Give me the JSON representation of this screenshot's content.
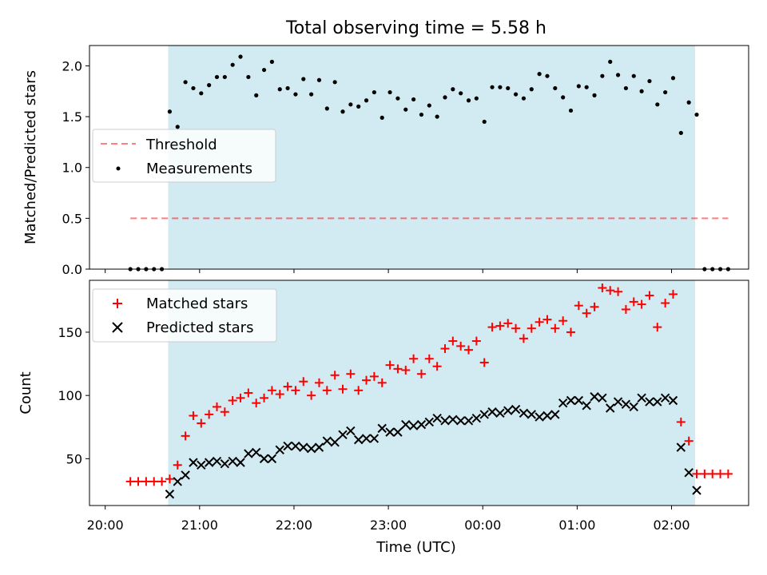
{
  "chart_data": [
    {
      "type": "scatter",
      "title": "Total observing time = 5.58 h",
      "xlabel": "",
      "ylabel": "Matched/Predicted stars",
      "ylim": [
        0,
        2.2
      ],
      "yticks": [
        "0.0",
        "0.5",
        "1.0",
        "1.5",
        "2.0"
      ],
      "legend": {
        "placement": "center-left",
        "entries": [
          "Threshold",
          "Measurements"
        ]
      },
      "shaded_interval": {
        "x": [
          "20:40",
          "02:15"
        ],
        "color": "#add8e6"
      },
      "threshold": {
        "name": "Threshold",
        "y": 0.5,
        "x": [
          "20:16",
          "02:36"
        ],
        "color": "#ff0000"
      },
      "series": [
        {
          "name": "Measurements",
          "color": "#000000",
          "x": [
            "20:16",
            "20:21",
            "20:26",
            "20:31",
            "20:36",
            "20:41",
            "20:46",
            "20:51",
            "20:56",
            "21:01",
            "21:06",
            "21:11",
            "21:16",
            "21:21",
            "21:26",
            "21:31",
            "21:36",
            "21:41",
            "21:46",
            "21:51",
            "21:56",
            "22:01",
            "22:06",
            "22:11",
            "22:16",
            "22:21",
            "22:26",
            "22:31",
            "22:36",
            "22:41",
            "22:46",
            "22:51",
            "22:56",
            "23:01",
            "23:06",
            "23:11",
            "23:16",
            "23:21",
            "23:26",
            "23:31",
            "23:36",
            "23:41",
            "23:46",
            "23:51",
            "23:56",
            "00:01",
            "00:06",
            "00:11",
            "00:16",
            "00:21",
            "00:26",
            "00:31",
            "00:36",
            "00:41",
            "00:46",
            "00:51",
            "00:56",
            "01:01",
            "01:06",
            "01:11",
            "01:16",
            "01:21",
            "01:26",
            "01:31",
            "01:36",
            "01:41",
            "01:46",
            "01:51",
            "01:56",
            "02:01",
            "02:06",
            "02:11",
            "02:16",
            "02:21",
            "02:26",
            "02:31",
            "02:36"
          ],
          "y": [
            0,
            0,
            0,
            0,
            0,
            1.55,
            1.4,
            1.84,
            1.78,
            1.73,
            1.81,
            1.89,
            1.89,
            2.01,
            2.09,
            1.89,
            1.71,
            1.96,
            2.04,
            1.77,
            1.78,
            1.72,
            1.87,
            1.72,
            1.86,
            1.58,
            1.84,
            1.55,
            1.62,
            1.6,
            1.66,
            1.74,
            1.49,
            1.74,
            1.68,
            1.57,
            1.67,
            1.52,
            1.61,
            1.5,
            1.69,
            1.77,
            1.73,
            1.66,
            1.68,
            1.45,
            1.79,
            1.79,
            1.78,
            1.72,
            1.68,
            1.77,
            1.92,
            1.9,
            1.78,
            1.69,
            1.56,
            1.8,
            1.79,
            1.71,
            1.9,
            2.04,
            1.91,
            1.78,
            1.9,
            1.75,
            1.85,
            1.62,
            1.74,
            1.88,
            1.34,
            1.64,
            1.52,
            0,
            0,
            0,
            0
          ]
        }
      ]
    },
    {
      "type": "scatter",
      "title": "",
      "xlabel": "Time (UTC)",
      "ylabel": "Count",
      "ylim": [
        13,
        191
      ],
      "yticks": [
        "50",
        "100",
        "150"
      ],
      "xticks": [
        "20:00",
        "21:00",
        "22:00",
        "23:00",
        "00:00",
        "01:00",
        "02:00"
      ],
      "legend": {
        "placement": "top-left",
        "entries": [
          "Matched stars",
          "Predicted stars"
        ]
      },
      "shaded_interval": {
        "x": [
          "20:40",
          "02:15"
        ],
        "color": "#add8e6"
      },
      "series": [
        {
          "name": "Matched stars",
          "color": "#ff0000",
          "marker": "+",
          "x": [
            "20:16",
            "20:21",
            "20:26",
            "20:31",
            "20:36",
            "20:41",
            "20:46",
            "20:51",
            "20:56",
            "21:01",
            "21:06",
            "21:11",
            "21:16",
            "21:21",
            "21:26",
            "21:31",
            "21:36",
            "21:41",
            "21:46",
            "21:51",
            "21:56",
            "22:01",
            "22:06",
            "22:11",
            "22:16",
            "22:21",
            "22:26",
            "22:31",
            "22:36",
            "22:41",
            "22:46",
            "22:51",
            "22:56",
            "23:01",
            "23:06",
            "23:11",
            "23:16",
            "23:21",
            "23:26",
            "23:31",
            "23:36",
            "23:41",
            "23:46",
            "23:51",
            "23:56",
            "00:01",
            "00:06",
            "00:11",
            "00:16",
            "00:21",
            "00:26",
            "00:31",
            "00:36",
            "00:41",
            "00:46",
            "00:51",
            "00:56",
            "01:01",
            "01:06",
            "01:11",
            "01:16",
            "01:21",
            "01:26",
            "01:31",
            "01:36",
            "01:41",
            "01:46",
            "01:51",
            "01:56",
            "02:01",
            "02:06",
            "02:11",
            "02:16",
            "02:21",
            "02:26",
            "02:31",
            "02:36"
          ],
          "y": [
            32,
            32,
            32,
            32,
            32,
            34,
            45,
            68,
            84,
            78,
            85,
            91,
            87,
            96,
            98,
            102,
            94,
            98,
            104,
            101,
            107,
            104,
            111,
            100,
            110,
            104,
            116,
            105,
            117,
            104,
            112,
            115,
            110,
            124,
            121,
            120,
            129,
            117,
            129,
            123,
            137,
            143,
            139,
            136,
            143,
            126,
            154,
            155,
            157,
            153,
            145,
            153,
            158,
            160,
            153,
            159,
            150,
            171,
            165,
            170,
            185,
            183,
            182,
            168,
            174,
            172,
            179,
            154,
            173,
            180,
            79,
            64,
            38,
            38,
            38,
            38,
            38
          ]
        },
        {
          "name": "Predicted stars",
          "color": "#000000",
          "marker": "x",
          "x": [
            "20:41",
            "20:46",
            "20:51",
            "20:56",
            "21:01",
            "21:06",
            "21:11",
            "21:16",
            "21:21",
            "21:26",
            "21:31",
            "21:36",
            "21:41",
            "21:46",
            "21:51",
            "21:56",
            "22:01",
            "22:06",
            "22:11",
            "22:16",
            "22:21",
            "22:26",
            "22:31",
            "22:36",
            "22:41",
            "22:46",
            "22:51",
            "22:56",
            "23:01",
            "23:06",
            "23:11",
            "23:16",
            "23:21",
            "23:26",
            "23:31",
            "23:36",
            "23:41",
            "23:46",
            "23:51",
            "23:56",
            "00:01",
            "00:06",
            "00:11",
            "00:16",
            "00:21",
            "00:26",
            "00:31",
            "00:36",
            "00:41",
            "00:46",
            "00:51",
            "00:56",
            "01:01",
            "01:06",
            "01:11",
            "01:16",
            "01:21",
            "01:26",
            "01:31",
            "01:36",
            "01:41",
            "01:46",
            "01:51",
            "01:56",
            "02:01",
            "02:06",
            "02:11",
            "02:16"
          ],
          "y": [
            22,
            32,
            37,
            47,
            45,
            47,
            48,
            46,
            48,
            47,
            54,
            55,
            50,
            50,
            57,
            60,
            60,
            59,
            58,
            59,
            64,
            63,
            69,
            72,
            65,
            66,
            66,
            74,
            71,
            71,
            77,
            76,
            77,
            79,
            82,
            80,
            81,
            80,
            80,
            82,
            85,
            87,
            86,
            88,
            89,
            86,
            85,
            83,
            84,
            85,
            94,
            96,
            96,
            92,
            99,
            98,
            90,
            95,
            93,
            91,
            98,
            95,
            95,
            98,
            96,
            59,
            39,
            25
          ]
        }
      ]
    }
  ]
}
